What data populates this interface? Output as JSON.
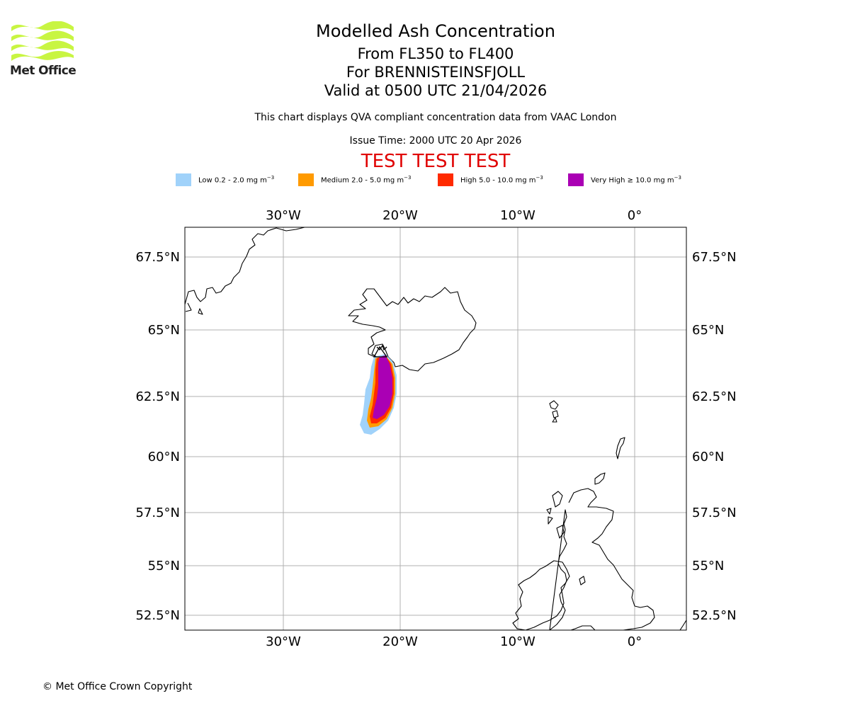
{
  "branding": {
    "logo_text": "Met Office",
    "logo_color": "#c8f542"
  },
  "header": {
    "title": "Modelled Ash Concentration",
    "levels": "From FL350 to FL400",
    "volcano": "For BRENNISTEINSFJOLL",
    "valid": "Valid at 0500 UTC 21/04/2026",
    "note": "This chart displays QVA compliant concentration data from VAAC London",
    "issue_time": "Issue Time: 2000 UTC 20 Apr 2026",
    "test_banner": "TEST TEST TEST",
    "test_color": "#e00000"
  },
  "legend": [
    {
      "label": "Low 0.2 - 2.0 mg m",
      "unit_exp": "−3",
      "color": "#a0d2fa"
    },
    {
      "label": "Medium 2.0 - 5.0 mg m",
      "unit_exp": "−3",
      "color": "#ff9a00"
    },
    {
      "label": "High 5.0 - 10.0 mg m",
      "unit_exp": "−3",
      "color": "#ff2a00"
    },
    {
      "label": "Very High  ≥  10.0 mg m",
      "unit_exp": "−3",
      "color": "#aa00b4"
    }
  ],
  "map": {
    "lon_labels": [
      "30°W",
      "20°W",
      "10°W",
      "0°"
    ],
    "lat_labels": [
      "67.5°N",
      "65°N",
      "62.5°N",
      "60°N",
      "57.5°N",
      "55°N",
      "52.5°N"
    ],
    "gridlines": true,
    "features": [
      "Greenland coast",
      "Iceland",
      "Faroe Islands",
      "Shetland",
      "Orkney",
      "Scotland",
      "Ireland",
      "England"
    ]
  },
  "footer": {
    "copyright": "© Met Office Crown Copyright"
  }
}
